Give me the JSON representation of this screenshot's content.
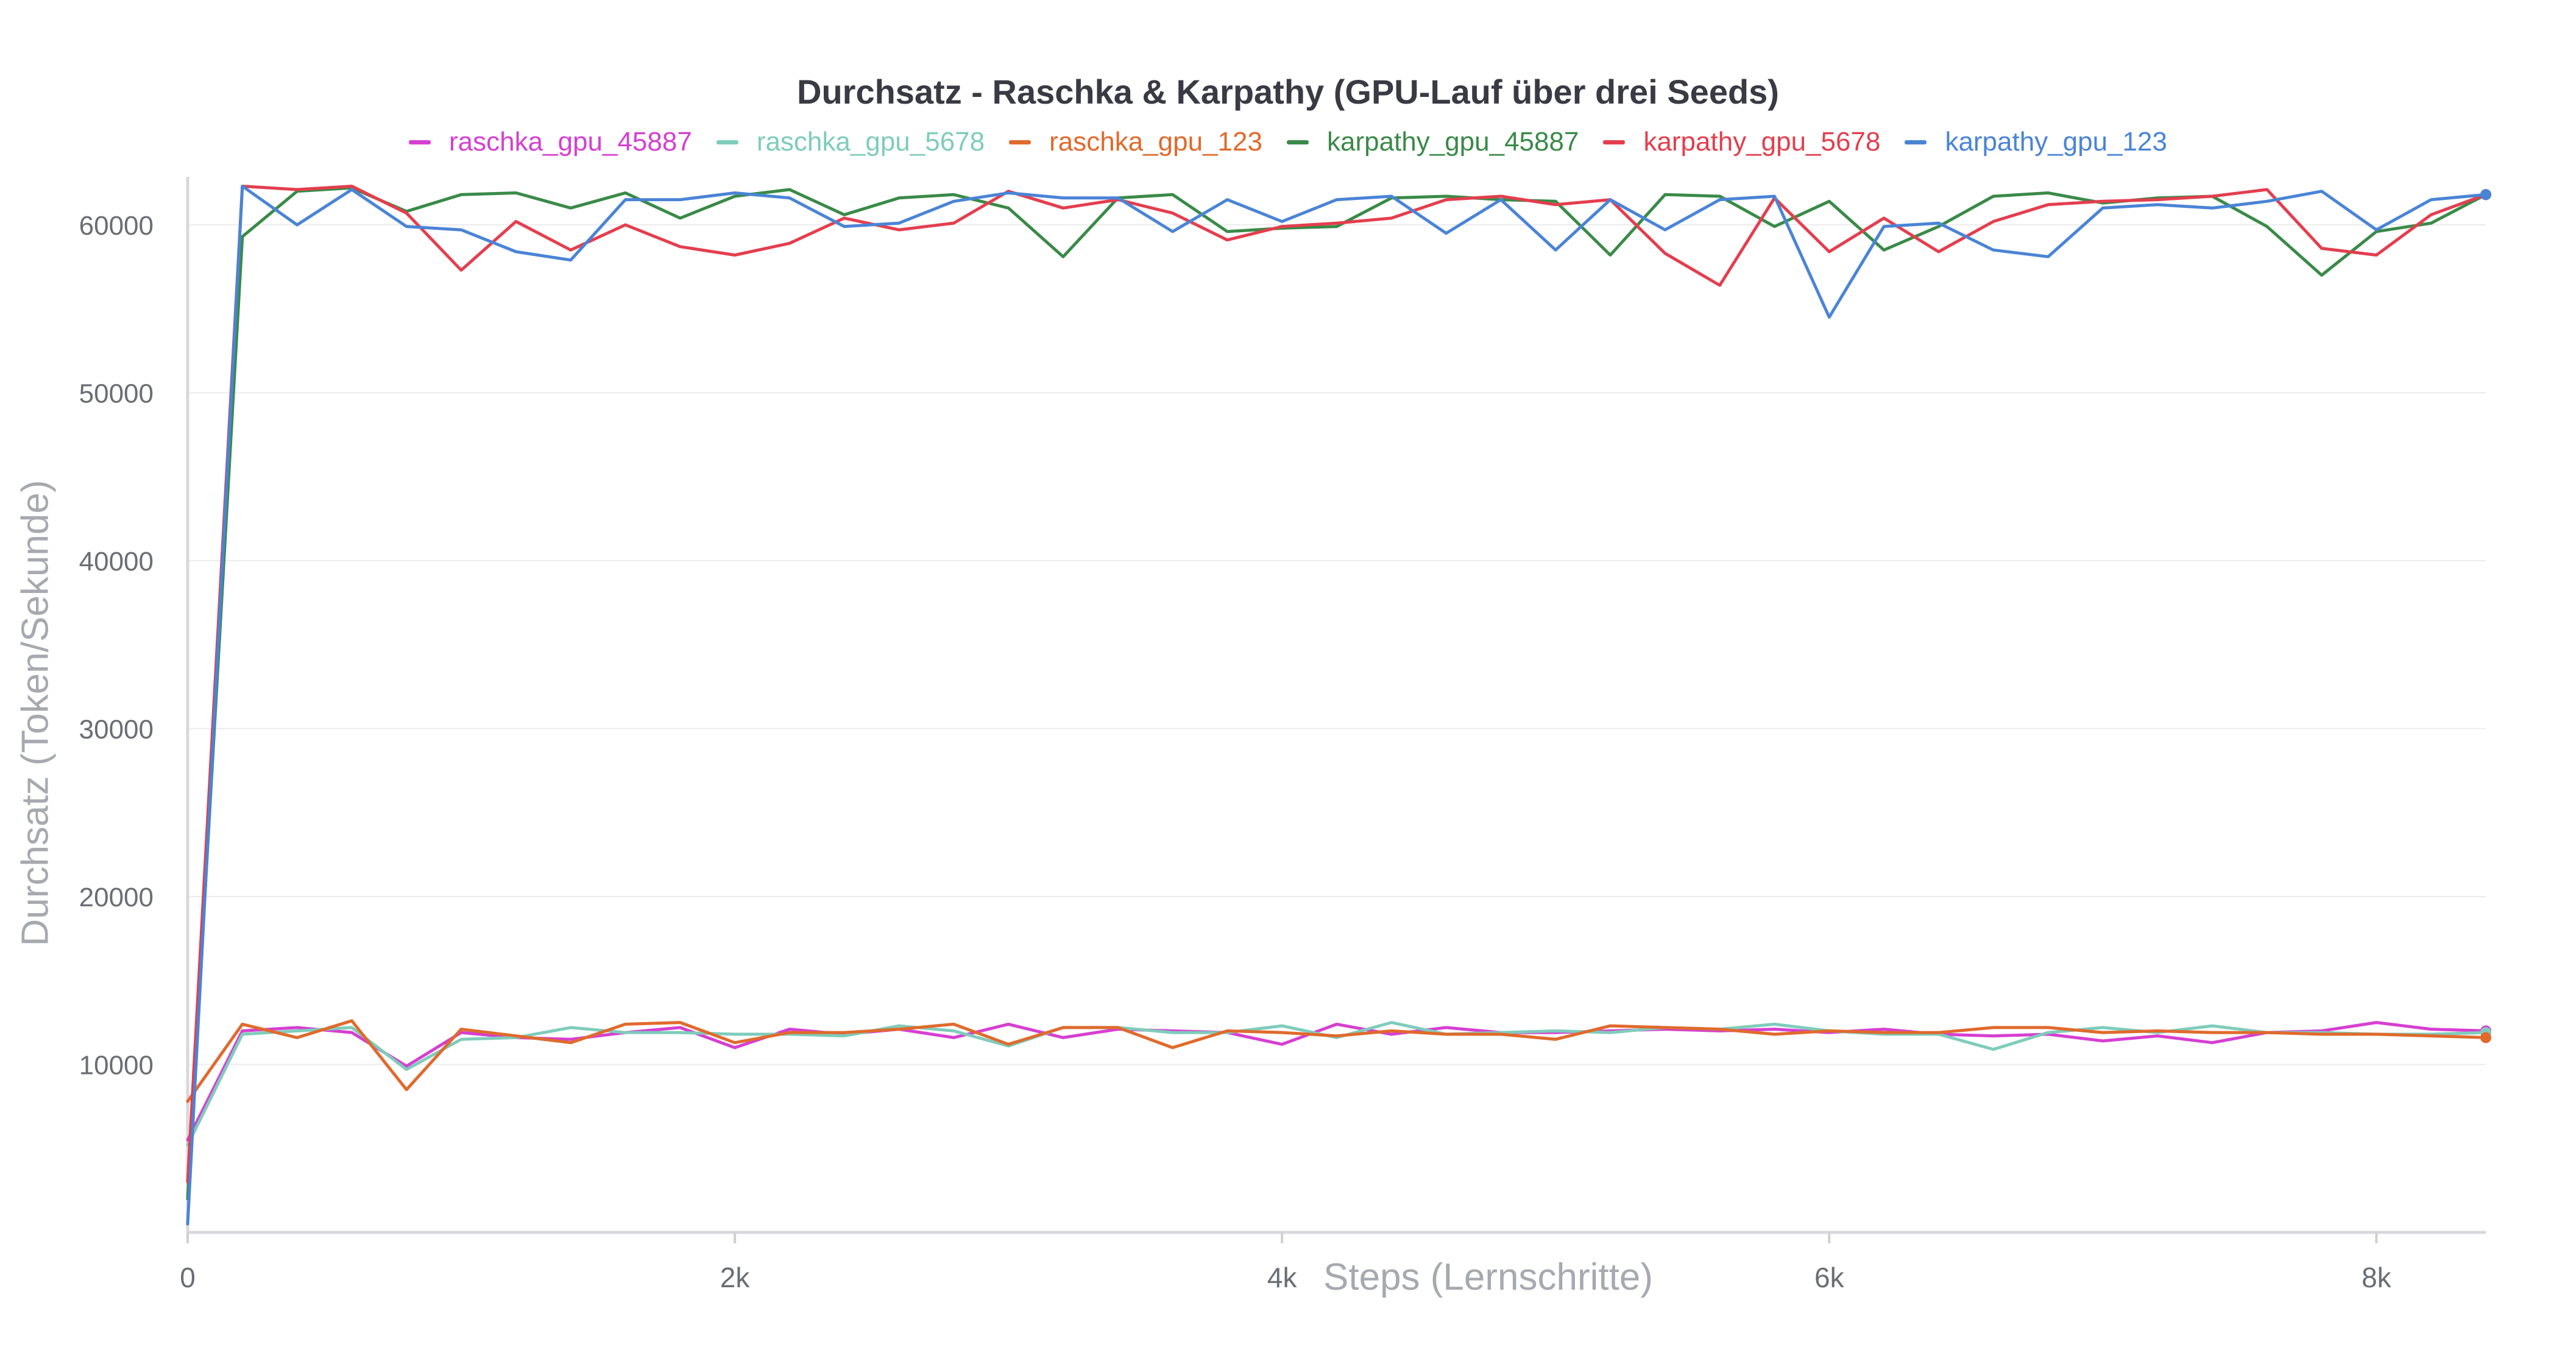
{
  "chart_data": {
    "type": "line",
    "title": "Durchsatz - Raschka & Karpathy (GPU-Lauf über drei Seeds)",
    "xlabel": "Steps (Lernschritte)",
    "ylabel": "Durchsatz (Token/Sekunde)",
    "xlim": [
      0,
      8400
    ],
    "ylim": [
      0,
      62500
    ],
    "x_ticks": [
      0,
      2000,
      4000,
      6000,
      8000
    ],
    "x_tick_labels": [
      "0",
      "2k",
      "4k",
      "6k",
      "8k"
    ],
    "y_ticks": [
      10000,
      20000,
      30000,
      40000,
      50000,
      60000
    ],
    "y_tick_labels": [
      "10000",
      "20000",
      "30000",
      "40000",
      "50000",
      "60000"
    ],
    "grid": "horizontal",
    "legend_position": "top-center",
    "x": [
      0,
      200,
      400,
      600,
      800,
      1000,
      1200,
      1400,
      1600,
      1800,
      2000,
      2200,
      2400,
      2600,
      2800,
      3000,
      3200,
      3400,
      3600,
      3800,
      4000,
      4200,
      4400,
      4600,
      4800,
      5000,
      5200,
      5400,
      5600,
      5800,
      6000,
      6200,
      6400,
      6600,
      6800,
      7000,
      7200,
      7400,
      7600,
      7800,
      8000,
      8200,
      8400
    ],
    "series": [
      {
        "name": "raschka_gpu_45887",
        "color": "#d63fd1",
        "values": [
          5500,
          12000,
          12200,
          11900,
          9900,
          11900,
          11600,
          11500,
          11900,
          12200,
          11000,
          12100,
          11800,
          12100,
          11600,
          12400,
          11600,
          12100,
          12000,
          11900,
          11200,
          12400,
          11800,
          12200,
          11900,
          11900,
          12000,
          12100,
          12000,
          12100,
          11900,
          12100,
          11800,
          11700,
          11800,
          11400,
          11700,
          11300,
          11900,
          12000,
          12500,
          12100,
          12000
        ]
      },
      {
        "name": "raschka_gpu_5678",
        "color": "#7fccbb",
        "values": [
          5200,
          11800,
          12000,
          12200,
          9700,
          11500,
          11600,
          12200,
          11900,
          11900,
          11800,
          11800,
          11700,
          12300,
          12000,
          11100,
          12200,
          12200,
          11900,
          11900,
          12300,
          11600,
          12500,
          11800,
          11900,
          12000,
          11900,
          12200,
          12100,
          12400,
          12000,
          11800,
          11800,
          10900,
          11900,
          12200,
          11900,
          12300,
          11900,
          11900,
          11800,
          11800,
          11900
        ]
      },
      {
        "name": "raschka_gpu_123",
        "color": "#e06a2c",
        "values": [
          7800,
          12400,
          11600,
          12600,
          8500,
          12100,
          11700,
          11300,
          12400,
          12500,
          11300,
          11900,
          11900,
          12100,
          12400,
          11200,
          12200,
          12200,
          11000,
          12000,
          11900,
          11700,
          12000,
          11800,
          11800,
          11500,
          12300,
          12200,
          12100,
          11800,
          12000,
          11900,
          11900,
          12200,
          12200,
          11900,
          12000,
          11900,
          11900,
          11800,
          11800,
          11700,
          11600
        ]
      },
      {
        "name": "karpathy_gpu_45887",
        "color": "#3a8a48",
        "values": [
          2000,
          59300,
          62000,
          62200,
          60800,
          61800,
          61900,
          61000,
          61900,
          60400,
          61700,
          62100,
          60600,
          61600,
          61800,
          61000,
          58100,
          61600,
          61800,
          59600,
          59800,
          59900,
          61600,
          61700,
          61500,
          61400,
          58200,
          61800,
          61700,
          59900,
          61400,
          58500,
          59900,
          61700,
          61900,
          61300,
          61600,
          61700,
          59900,
          57000,
          59600,
          60100,
          61800
        ]
      },
      {
        "name": "karpathy_gpu_5678",
        "color": "#e43e4e",
        "values": [
          3000,
          62300,
          62100,
          62300,
          60700,
          57300,
          60200,
          58500,
          60000,
          58700,
          58200,
          58900,
          60400,
          59700,
          60100,
          62000,
          61000,
          61500,
          60700,
          59100,
          59900,
          60100,
          60400,
          61500,
          61700,
          61200,
          61500,
          58300,
          56400,
          61600,
          58400,
          60400,
          58400,
          60200,
          61200,
          61400,
          61500,
          61700,
          62100,
          58600,
          58200,
          60600,
          61800
        ]
      },
      {
        "name": "karpathy_gpu_123",
        "color": "#4a84d6",
        "values": [
          500,
          62300,
          60000,
          62100,
          59900,
          59700,
          58400,
          57900,
          61500,
          61500,
          61900,
          61600,
          59900,
          60100,
          61400,
          61900,
          61600,
          61600,
          59600,
          61500,
          60200,
          61500,
          61700,
          59500,
          61500,
          58500,
          61500,
          59700,
          61500,
          61700,
          54500,
          59900,
          60100,
          58500,
          58100,
          61000,
          61200,
          61000,
          61400,
          62000,
          59700,
          61500,
          61800
        ]
      }
    ]
  }
}
